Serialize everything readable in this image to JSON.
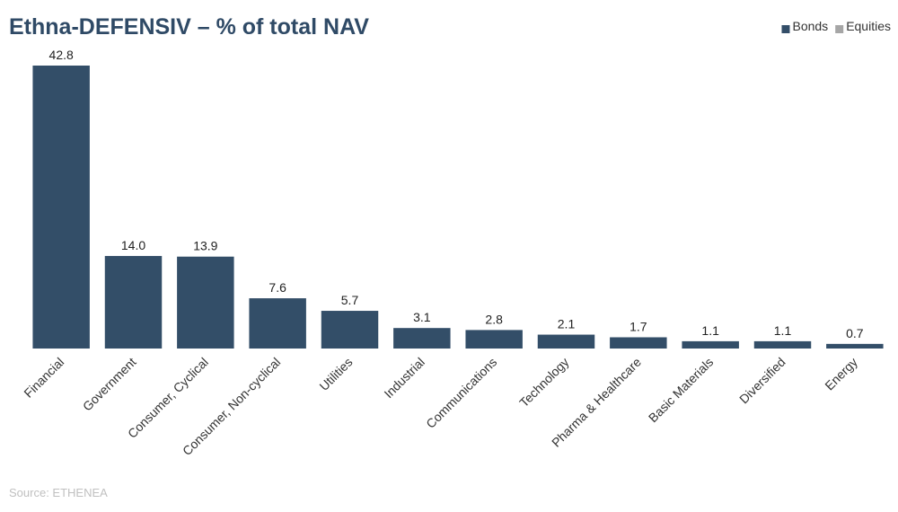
{
  "chart_data": {
    "type": "bar",
    "stacked": true,
    "title": "Ethna-DEFENSIV – % of total NAV",
    "categories": [
      "Financial",
      "Government",
      "Consumer, Cyclical",
      "Consumer, Non-cyclical",
      "Utilities",
      "Industrial",
      "Communications",
      "Technology",
      "Pharma & Healthcare",
      "Basic Materials",
      "Diversified",
      "Energy"
    ],
    "series": [
      {
        "name": "Bonds",
        "color": "#334e68",
        "values": [
          42.8,
          14.0,
          13.9,
          7.6,
          5.7,
          3.1,
          2.8,
          2.1,
          1.7,
          1.1,
          1.1,
          0.7
        ],
        "value_labels": [
          "42.8",
          "14.0",
          "13.9",
          "7.6",
          "5.7",
          "3.1",
          "2.8",
          "2.1",
          "1.7",
          "1.1",
          "1.1",
          "0.7"
        ]
      },
      {
        "name": "Equities",
        "color": "#a6a6a6",
        "values": [
          0,
          0,
          0,
          0,
          0,
          0,
          0,
          0,
          0,
          0,
          0,
          0
        ]
      }
    ],
    "legend": "top-right",
    "source": "Source: ETHENEA"
  }
}
